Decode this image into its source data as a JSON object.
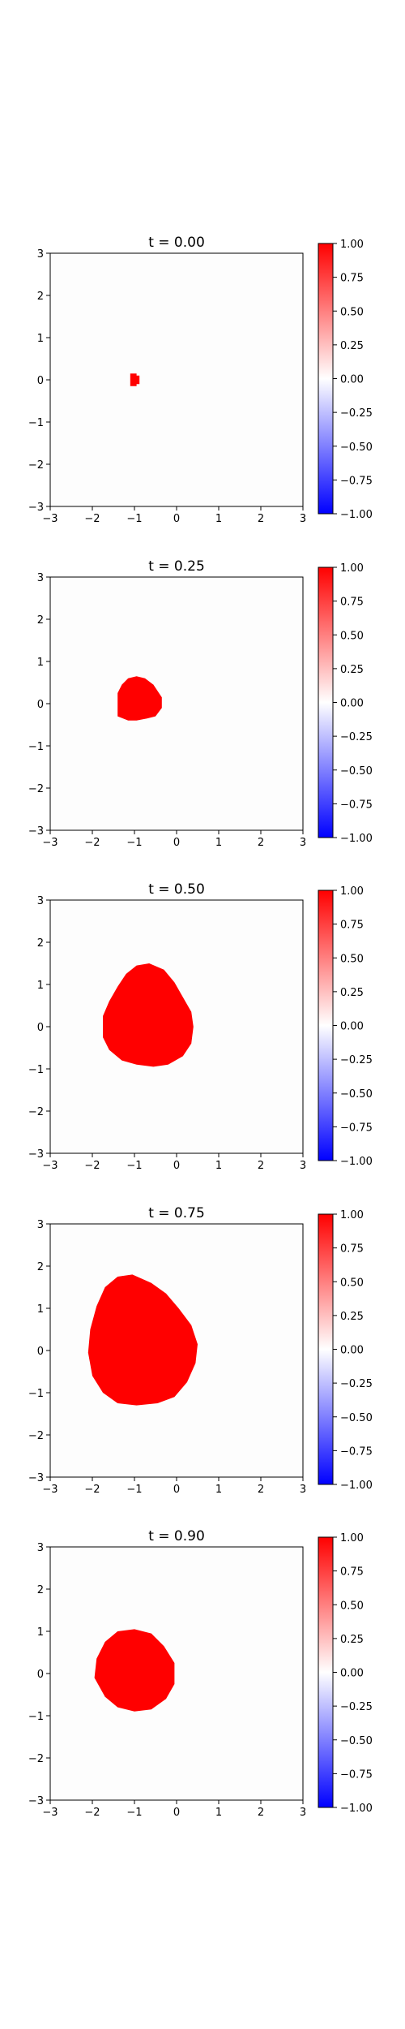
{
  "chart_data": [
    {
      "type": "heatmap",
      "title": "t = 0.00",
      "xlim": [
        -3,
        3
      ],
      "ylim": [
        -3,
        3
      ],
      "xticks": [
        "−3",
        "−2",
        "−1",
        "0",
        "1",
        "2",
        "3"
      ],
      "yticks": [
        "−3",
        "−2",
        "−1",
        "0",
        "1",
        "2",
        "3"
      ],
      "grid": false,
      "region": {
        "value": 1.0,
        "outline": [
          [
            -1.1,
            0.15
          ],
          [
            -0.95,
            0.15
          ],
          [
            -0.95,
            0.1
          ],
          [
            -0.88,
            0.1
          ],
          [
            -0.88,
            -0.1
          ],
          [
            -0.95,
            -0.1
          ],
          [
            -0.95,
            -0.15
          ],
          [
            -1.1,
            -0.15
          ]
        ]
      }
    },
    {
      "type": "heatmap",
      "title": "t = 0.25",
      "xlim": [
        -3,
        3
      ],
      "ylim": [
        -3,
        3
      ],
      "xticks": [
        "−3",
        "−2",
        "−1",
        "0",
        "1",
        "2",
        "3"
      ],
      "yticks": [
        "−3",
        "−2",
        "−1",
        "0",
        "1",
        "2",
        "3"
      ],
      "grid": false,
      "region": {
        "value": 1.0,
        "outline": [
          [
            -1.4,
            -0.3
          ],
          [
            -1.4,
            0.25
          ],
          [
            -1.3,
            0.45
          ],
          [
            -1.15,
            0.6
          ],
          [
            -0.95,
            0.65
          ],
          [
            -0.75,
            0.6
          ],
          [
            -0.55,
            0.45
          ],
          [
            -0.35,
            0.15
          ],
          [
            -0.35,
            -0.1
          ],
          [
            -0.5,
            -0.3
          ],
          [
            -0.7,
            -0.35
          ],
          [
            -0.95,
            -0.4
          ],
          [
            -1.15,
            -0.4
          ]
        ]
      }
    },
    {
      "type": "heatmap",
      "title": "t = 0.50",
      "xlim": [
        -3,
        3
      ],
      "ylim": [
        -3,
        3
      ],
      "xticks": [
        "−3",
        "−2",
        "−1",
        "0",
        "1",
        "2",
        "3"
      ],
      "yticks": [
        "−3",
        "−2",
        "−1",
        "0",
        "1",
        "2",
        "3"
      ],
      "grid": false,
      "region": {
        "value": 1.0,
        "outline": [
          [
            -1.75,
            -0.25
          ],
          [
            -1.75,
            0.25
          ],
          [
            -1.6,
            0.6
          ],
          [
            -1.4,
            0.95
          ],
          [
            -1.2,
            1.25
          ],
          [
            -0.95,
            1.45
          ],
          [
            -0.65,
            1.5
          ],
          [
            -0.3,
            1.35
          ],
          [
            -0.05,
            1.05
          ],
          [
            0.15,
            0.7
          ],
          [
            0.35,
            0.35
          ],
          [
            0.4,
            0.0
          ],
          [
            0.35,
            -0.4
          ],
          [
            0.15,
            -0.7
          ],
          [
            -0.2,
            -0.9
          ],
          [
            -0.55,
            -0.95
          ],
          [
            -0.95,
            -0.9
          ],
          [
            -1.3,
            -0.8
          ],
          [
            -1.6,
            -0.55
          ]
        ]
      }
    },
    {
      "type": "heatmap",
      "title": "t = 0.75",
      "xlim": [
        -3,
        3
      ],
      "ylim": [
        -3,
        3
      ],
      "xticks": [
        "−3",
        "−2",
        "−1",
        "0",
        "1",
        "2",
        "3"
      ],
      "yticks": [
        "−3",
        "−2",
        "−1",
        "0",
        "1",
        "2",
        "3"
      ],
      "grid": false,
      "region": {
        "value": 1.0,
        "outline": [
          [
            -2.1,
            -0.05
          ],
          [
            -2.05,
            0.5
          ],
          [
            -1.9,
            1.05
          ],
          [
            -1.7,
            1.5
          ],
          [
            -1.4,
            1.75
          ],
          [
            -1.05,
            1.8
          ],
          [
            -0.6,
            1.6
          ],
          [
            -0.25,
            1.35
          ],
          [
            0.05,
            1.0
          ],
          [
            0.35,
            0.6
          ],
          [
            0.5,
            0.15
          ],
          [
            0.45,
            -0.3
          ],
          [
            0.25,
            -0.75
          ],
          [
            -0.05,
            -1.1
          ],
          [
            -0.45,
            -1.25
          ],
          [
            -0.95,
            -1.3
          ],
          [
            -1.4,
            -1.25
          ],
          [
            -1.75,
            -1.0
          ],
          [
            -2.0,
            -0.6
          ]
        ]
      }
    },
    {
      "type": "heatmap",
      "title": "t = 0.90",
      "xlim": [
        -3,
        3
      ],
      "ylim": [
        -3,
        3
      ],
      "xticks": [
        "−3",
        "−2",
        "−1",
        "0",
        "1",
        "2",
        "3"
      ],
      "yticks": [
        "−3",
        "−2",
        "−1",
        "0",
        "1",
        "2",
        "3"
      ],
      "grid": false,
      "region": {
        "value": 1.0,
        "outline": [
          [
            -1.95,
            -0.1
          ],
          [
            -1.9,
            0.35
          ],
          [
            -1.7,
            0.75
          ],
          [
            -1.4,
            1.0
          ],
          [
            -1.0,
            1.05
          ],
          [
            -0.6,
            0.95
          ],
          [
            -0.3,
            0.65
          ],
          [
            -0.05,
            0.25
          ],
          [
            -0.05,
            -0.25
          ],
          [
            -0.25,
            -0.6
          ],
          [
            -0.6,
            -0.85
          ],
          [
            -1.0,
            -0.9
          ],
          [
            -1.4,
            -0.8
          ],
          [
            -1.7,
            -0.55
          ]
        ]
      }
    }
  ],
  "colorbar": {
    "cmap": "bwr",
    "range": [
      -1,
      1
    ],
    "tick_values": [
      1.0,
      0.75,
      0.5,
      0.25,
      0.0,
      -0.25,
      -0.5,
      -0.75,
      -1.0
    ],
    "tick_labels": [
      "1.00",
      "0.75",
      "0.50",
      "0.25",
      "0.00",
      "−0.25",
      "−0.50",
      "−0.75",
      "−1.00"
    ],
    "colors": {
      "low": "#0000ff",
      "mid": "#ffffff",
      "high": "#ff0000"
    }
  },
  "colors": {
    "field_background": "#fdfdfd",
    "region_fill": "#ff0000"
  }
}
